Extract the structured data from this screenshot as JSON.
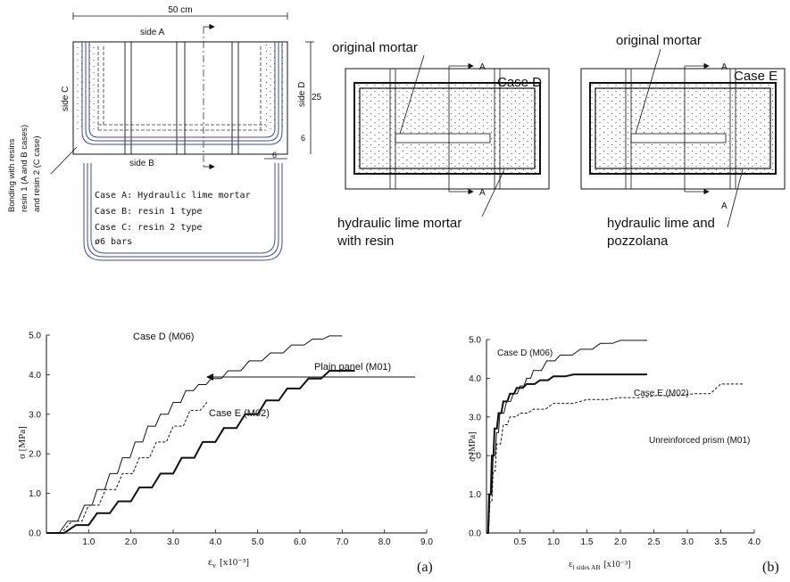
{
  "sketch": {
    "dim_width": "50 cm",
    "side_a": "side A",
    "side_b": "side B",
    "side_c": "side C",
    "side_d": "side D",
    "dim_height": "25",
    "dim_6_side": "6",
    "dim_6_bottom": "6",
    "bonding_1": "Bonding with resins",
    "bonding_2": "resin 1 (A and B cases)",
    "bonding_3": "and resin 2 (C case)",
    "case_a": "Case A: Hydraulic lime mortar",
    "case_b": "Case B: resin 1 type",
    "case_c": "Case C: resin 2 type",
    "bars": "ø6 bars"
  },
  "section_d": {
    "original_mortar": "original mortar",
    "case": "Case D",
    "a_top": "A",
    "a_bottom": "A",
    "fill_1": "hydraulic lime mortar",
    "fill_2": "with resin"
  },
  "section_e": {
    "original_mortar": "original mortar",
    "case": "Case E",
    "a_top": "A",
    "a_bottom": "A",
    "fill_1": "hydraulic lime and",
    "fill_2": "pozzolana"
  },
  "chart_data": [
    {
      "type": "line",
      "panel_label": "(a)",
      "xlabel_main": "ε",
      "xlabel_sub": "v",
      "xlabel_unit": "[x10⁻³]",
      "ylabel": "σ [MPa]",
      "xlim": [
        0,
        9.0
      ],
      "ylim": [
        0,
        5.0
      ],
      "xticks": [
        "1.0",
        "2.0",
        "3.0",
        "4.0",
        "5.0",
        "6.0",
        "7.0",
        "8.0",
        "9.0"
      ],
      "yticks": [
        "0.0",
        "1.0",
        "2.0",
        "3.0",
        "4.0",
        "5.0"
      ],
      "annotations": [
        "Case D (M06)",
        "Plain panel (M01)",
        "Case E (M02)"
      ],
      "series": [
        {
          "name": "Case D (M06)",
          "style": "solid-thin",
          "x": [
            0,
            0.5,
            0.9,
            1.2,
            1.5,
            1.8,
            2.1,
            2.4,
            2.7,
            3.0,
            3.3,
            3.6,
            3.9,
            4.3,
            4.8,
            5.3,
            5.8,
            6.3,
            6.7,
            7.0
          ],
          "y": [
            0,
            0.3,
            0.7,
            1.1,
            1.5,
            1.9,
            2.3,
            2.7,
            3.0,
            3.3,
            3.6,
            3.75,
            3.9,
            4.1,
            4.35,
            4.55,
            4.75,
            4.9,
            4.98,
            4.98
          ]
        },
        {
          "name": "Plain panel (M01)",
          "style": "dashed",
          "x": [
            0,
            0.6,
            1.0,
            1.4,
            1.8,
            2.2,
            2.6,
            3.0,
            3.4,
            3.8
          ],
          "y": [
            0,
            0.3,
            0.7,
            1.1,
            1.5,
            1.9,
            2.3,
            2.7,
            3.1,
            3.3
          ]
        },
        {
          "name": "Case E (M02)",
          "style": "solid-thick",
          "x": [
            0,
            0.7,
            1.2,
            1.7,
            2.2,
            2.7,
            3.2,
            3.7,
            4.2,
            4.7,
            5.2,
            5.7,
            6.2,
            6.7,
            7.3
          ],
          "y": [
            0,
            0.2,
            0.5,
            0.8,
            1.15,
            1.5,
            1.9,
            2.3,
            2.65,
            3.0,
            3.35,
            3.65,
            3.9,
            4.1,
            4.1
          ]
        }
      ]
    },
    {
      "type": "line",
      "panel_label": "(b)",
      "xlabel_main": "ε",
      "xlabel_sub": "l sides AB",
      "xlabel_unit": "[x10⁻³]",
      "ylabel": "σ [MPa]",
      "xlim": [
        0,
        4.0
      ],
      "ylim": [
        0,
        5.0
      ],
      "xticks": [
        "0.5",
        "1.0",
        "1.5",
        "2.0",
        "2.5",
        "3.0",
        "3.5",
        "4.0"
      ],
      "yticks": [
        "0.0",
        "1.0",
        "2.0",
        "3.0",
        "4.0",
        "5.0"
      ],
      "annotations": [
        "Case D (M06)",
        "Case E (M02)",
        "Unreinforced prism (M01)"
      ],
      "series": [
        {
          "name": "Case D (M06)",
          "style": "solid-thin",
          "x": [
            0,
            0.05,
            0.1,
            0.15,
            0.2,
            0.3,
            0.4,
            0.5,
            0.6,
            0.7,
            0.9,
            1.1,
            1.4,
            1.7,
            2.0,
            2.4
          ],
          "y": [
            0,
            1.0,
            2.0,
            2.6,
            3.1,
            3.4,
            3.6,
            3.8,
            4.0,
            4.2,
            4.45,
            4.6,
            4.75,
            4.9,
            4.98,
            4.98
          ]
        },
        {
          "name": "Case E (M02)",
          "style": "solid-thick",
          "x": [
            0,
            0.04,
            0.08,
            0.12,
            0.18,
            0.25,
            0.35,
            0.45,
            0.6,
            0.8,
            1.0,
            1.3,
            1.7,
            2.4
          ],
          "y": [
            0,
            1.0,
            2.0,
            2.7,
            3.1,
            3.4,
            3.6,
            3.75,
            3.85,
            3.95,
            4.05,
            4.1,
            4.1,
            4.1
          ]
        },
        {
          "name": "Unreinforced prism (M01)",
          "style": "dashed",
          "x": [
            0,
            0.05,
            0.1,
            0.15,
            0.25,
            0.35,
            0.5,
            0.7,
            1.0,
            1.5,
            2.0,
            2.5,
            3.1,
            3.5,
            3.85
          ],
          "y": [
            0,
            0.8,
            1.6,
            2.3,
            2.8,
            3.0,
            3.1,
            3.2,
            3.35,
            3.45,
            3.5,
            3.55,
            3.6,
            3.85,
            3.85
          ]
        }
      ]
    }
  ]
}
